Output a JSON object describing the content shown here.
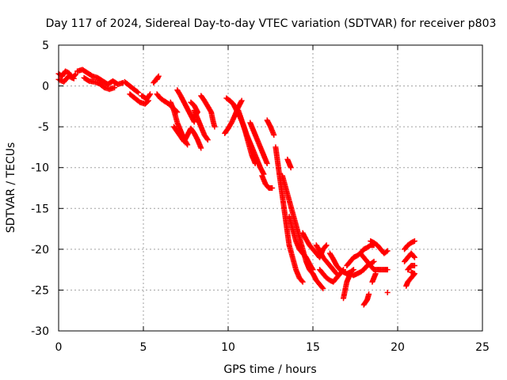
{
  "chart_data": {
    "type": "scatter",
    "title": "Day 117 of 2024, Sidereal Day-to-day VTEC variation (SDTVAR) for receiver p803",
    "xlabel": "GPS time / hours",
    "ylabel": "SDTVAR / TECUs",
    "xlim": [
      0,
      25
    ],
    "ylim": [
      -30,
      5
    ],
    "xticks": [
      0,
      5,
      10,
      15,
      20,
      25
    ],
    "yticks": [
      5,
      0,
      -5,
      -10,
      -15,
      -20,
      -25,
      -30
    ],
    "grid": true,
    "marker": "+",
    "color": "#ff0000",
    "series": [
      {
        "name": "SDTVAR",
        "segments": [
          [
            [
              0.0,
              1.5
            ],
            [
              0.2,
              1.2
            ],
            [
              0.4,
              1.8
            ],
            [
              0.6,
              1.6
            ],
            [
              0.8,
              1.0
            ],
            [
              1.0,
              1.4
            ]
          ],
          [
            [
              0.0,
              0.8
            ],
            [
              0.3,
              0.5
            ],
            [
              0.6,
              1.2
            ],
            [
              0.9,
              0.9
            ]
          ],
          [
            [
              1.1,
              1.8
            ],
            [
              1.4,
              2.0
            ],
            [
              1.7,
              1.6
            ],
            [
              2.0,
              1.2
            ],
            [
              2.3,
              1.0
            ],
            [
              2.6,
              0.6
            ],
            [
              2.9,
              0.2
            ],
            [
              3.2,
              0.6
            ],
            [
              3.5,
              0.2
            ],
            [
              3.8,
              0.4
            ]
          ],
          [
            [
              1.5,
              1.0
            ],
            [
              1.8,
              0.6
            ],
            [
              2.1,
              0.5
            ],
            [
              2.4,
              0.3
            ],
            [
              2.7,
              -0.2
            ],
            [
              3.0,
              -0.4
            ],
            [
              3.3,
              -0.2
            ]
          ],
          [
            [
              3.9,
              0.5
            ],
            [
              4.2,
              0.0
            ],
            [
              4.5,
              -0.5
            ],
            [
              4.7,
              -0.8
            ]
          ],
          [
            [
              4.2,
              -1.0
            ],
            [
              4.5,
              -1.5
            ],
            [
              4.8,
              -2.0
            ],
            [
              5.1,
              -2.2
            ],
            [
              5.3,
              -1.8
            ]
          ],
          [
            [
              4.9,
              -1.2
            ],
            [
              5.2,
              -1.6
            ],
            [
              5.4,
              -1.0
            ]
          ],
          [
            [
              5.8,
              0.8
            ],
            [
              5.9,
              1.2
            ],
            [
              5.6,
              0.4
            ]
          ],
          [
            [
              5.8,
              -1.0
            ],
            [
              6.0,
              -1.5
            ],
            [
              6.2,
              -1.8
            ],
            [
              6.5,
              -2.2
            ],
            [
              6.8,
              -2.8
            ],
            [
              7.0,
              -3.2
            ]
          ],
          [
            [
              6.6,
              -2.0
            ],
            [
              6.8,
              -3.0
            ],
            [
              7.0,
              -4.5
            ],
            [
              7.2,
              -5.5
            ],
            [
              7.4,
              -6.5
            ],
            [
              7.6,
              -7.2
            ]
          ],
          [
            [
              7.0,
              -0.5
            ],
            [
              7.2,
              -1.2
            ],
            [
              7.4,
              -2.0
            ],
            [
              7.6,
              -2.8
            ],
            [
              7.8,
              -3.6
            ],
            [
              8.0,
              -4.4
            ]
          ],
          [
            [
              6.8,
              -5.0
            ],
            [
              7.0,
              -5.6
            ],
            [
              7.2,
              -6.2
            ],
            [
              7.4,
              -6.8
            ],
            [
              7.6,
              -6.0
            ],
            [
              7.8,
              -5.2
            ],
            [
              8.0,
              -5.8
            ],
            [
              8.2,
              -6.6
            ],
            [
              8.4,
              -7.6
            ]
          ],
          [
            [
              8.0,
              -3.0
            ],
            [
              8.2,
              -4.0
            ],
            [
              8.4,
              -5.0
            ],
            [
              8.6,
              -6.0
            ],
            [
              8.8,
              -6.6
            ]
          ],
          [
            [
              8.4,
              -1.2
            ],
            [
              8.6,
              -1.8
            ],
            [
              8.8,
              -2.5
            ],
            [
              9.0,
              -3.2
            ],
            [
              9.1,
              -4.2
            ],
            [
              9.2,
              -5.0
            ]
          ],
          [
            [
              7.8,
              -2.0
            ],
            [
              8.0,
              -2.4
            ],
            [
              8.2,
              -3.2
            ],
            [
              8.0,
              -3.8
            ]
          ],
          [
            [
              9.9,
              -1.5
            ],
            [
              10.1,
              -1.8
            ],
            [
              10.3,
              -2.2
            ],
            [
              10.5,
              -3.0
            ],
            [
              10.7,
              -3.8
            ],
            [
              10.9,
              -4.8
            ],
            [
              11.1,
              -6.0
            ],
            [
              11.3,
              -7.0
            ],
            [
              11.5,
              -8.0
            ],
            [
              11.7,
              -9.0
            ],
            [
              11.9,
              -10.0
            ],
            [
              12.1,
              -10.8
            ]
          ],
          [
            [
              9.8,
              -5.8
            ],
            [
              10.0,
              -5.2
            ],
            [
              10.2,
              -4.5
            ],
            [
              10.4,
              -3.6
            ],
            [
              10.6,
              -2.6
            ],
            [
              10.8,
              -1.8
            ]
          ],
          [
            [
              10.6,
              -3.0
            ],
            [
              10.8,
              -4.2
            ],
            [
              11.0,
              -5.5
            ],
            [
              11.2,
              -7.0
            ],
            [
              11.4,
              -8.5
            ],
            [
              11.6,
              -9.5
            ]
          ],
          [
            [
              11.3,
              -4.5
            ],
            [
              11.5,
              -5.5
            ],
            [
              11.7,
              -6.5
            ],
            [
              11.9,
              -7.5
            ],
            [
              12.1,
              -8.5
            ],
            [
              12.3,
              -9.5
            ]
          ],
          [
            [
              12.3,
              -4.2
            ],
            [
              12.5,
              -5.0
            ],
            [
              12.7,
              -6.0
            ]
          ],
          [
            [
              12.0,
              -11.0
            ],
            [
              12.2,
              -12.0
            ],
            [
              12.4,
              -12.5
            ],
            [
              12.6,
              -12.5
            ]
          ],
          [
            [
              12.8,
              -7.5
            ],
            [
              12.9,
              -9.0
            ],
            [
              13.0,
              -10.5
            ],
            [
              13.1,
              -12.0
            ],
            [
              13.2,
              -13.5
            ],
            [
              13.3,
              -15.0
            ],
            [
              13.4,
              -16.5
            ],
            [
              13.5,
              -18.0
            ],
            [
              13.6,
              -19.5
            ],
            [
              13.8,
              -21.0
            ],
            [
              14.0,
              -22.5
            ],
            [
              14.2,
              -23.5
            ],
            [
              14.4,
              -24.0
            ]
          ],
          [
            [
              13.2,
              -11.0
            ],
            [
              13.4,
              -12.5
            ],
            [
              13.6,
              -14.0
            ],
            [
              13.8,
              -15.5
            ],
            [
              14.0,
              -17.0
            ],
            [
              14.2,
              -18.5
            ],
            [
              14.4,
              -20.0
            ],
            [
              14.6,
              -21.5
            ],
            [
              14.8,
              -22.5
            ],
            [
              15.0,
              -23.0
            ],
            [
              15.2,
              -23.8
            ],
            [
              15.4,
              -24.3
            ],
            [
              15.6,
              -24.8
            ]
          ],
          [
            [
              13.6,
              -16.0
            ],
            [
              13.8,
              -17.5
            ],
            [
              14.0,
              -19.0
            ],
            [
              14.2,
              -20.0
            ],
            [
              14.4,
              -20.5
            ],
            [
              14.6,
              -21.0
            ],
            [
              14.8,
              -21.8
            ],
            [
              15.0,
              -22.5
            ]
          ],
          [
            [
              14.4,
              -18.0
            ],
            [
              14.6,
              -18.8
            ],
            [
              14.8,
              -19.5
            ],
            [
              15.0,
              -20.0
            ],
            [
              15.2,
              -20.5
            ],
            [
              15.4,
              -21.0
            ],
            [
              15.6,
              -20.0
            ],
            [
              15.8,
              -19.5
            ]
          ],
          [
            [
              13.5,
              -9.0
            ],
            [
              13.6,
              -9.5
            ],
            [
              13.7,
              -10.0
            ]
          ],
          [
            [
              15.2,
              -19.5
            ],
            [
              15.4,
              -20.2
            ],
            [
              15.6,
              -21.0
            ],
            [
              15.8,
              -21.5
            ],
            [
              16.0,
              -22.0
            ],
            [
              16.2,
              -22.5
            ],
            [
              16.4,
              -23.0
            ]
          ],
          [
            [
              15.4,
              -22.5
            ],
            [
              15.6,
              -23.0
            ],
            [
              15.8,
              -23.5
            ],
            [
              16.0,
              -23.8
            ],
            [
              16.2,
              -24.0
            ],
            [
              16.4,
              -23.5
            ],
            [
              16.6,
              -23.0
            ],
            [
              16.8,
              -22.5
            ]
          ],
          [
            [
              16.0,
              -20.5
            ],
            [
              16.2,
              -21.2
            ],
            [
              16.4,
              -22.0
            ],
            [
              16.6,
              -22.5
            ],
            [
              16.8,
              -22.8
            ],
            [
              17.0,
              -23.0
            ],
            [
              17.2,
              -22.8
            ],
            [
              17.4,
              -22.5
            ]
          ],
          [
            [
              16.8,
              -26.0
            ],
            [
              16.9,
              -25.0
            ],
            [
              17.0,
              -24.0
            ],
            [
              17.1,
              -23.5
            ],
            [
              17.2,
              -23.0
            ]
          ],
          [
            [
              17.0,
              -22.0
            ],
            [
              17.2,
              -21.5
            ],
            [
              17.4,
              -21.0
            ],
            [
              17.6,
              -20.8
            ],
            [
              17.8,
              -20.5
            ],
            [
              18.0,
              -20.0
            ],
            [
              18.2,
              -19.8
            ],
            [
              18.4,
              -19.5
            ],
            [
              18.6,
              -19.5
            ]
          ],
          [
            [
              17.2,
              -23.0
            ],
            [
              17.4,
              -23.2
            ],
            [
              17.6,
              -23.0
            ],
            [
              17.8,
              -22.8
            ],
            [
              18.0,
              -22.5
            ],
            [
              18.2,
              -22.0
            ],
            [
              18.4,
              -21.8
            ],
            [
              18.6,
              -21.5
            ]
          ],
          [
            [
              17.8,
              -20.5
            ],
            [
              18.0,
              -21.0
            ],
            [
              18.2,
              -21.5
            ],
            [
              18.4,
              -22.0
            ],
            [
              18.6,
              -22.5
            ],
            [
              18.8,
              -22.5
            ],
            [
              19.0,
              -22.5
            ],
            [
              19.2,
              -22.5
            ],
            [
              19.4,
              -22.5
            ]
          ],
          [
            [
              18.4,
              -19.0
            ],
            [
              18.6,
              -19.2
            ],
            [
              18.8,
              -19.5
            ],
            [
              19.0,
              -20.0
            ],
            [
              19.2,
              -20.5
            ],
            [
              19.4,
              -20.2
            ]
          ],
          [
            [
              18.5,
              -24.0
            ],
            [
              18.6,
              -23.5
            ],
            [
              18.7,
              -23.0
            ]
          ],
          [
            [
              18.0,
              -26.8
            ],
            [
              18.2,
              -26.2
            ],
            [
              18.3,
              -25.5
            ]
          ],
          [
            [
              19.4,
              -25.3
            ]
          ],
          [
            [
              20.4,
              -20.0
            ],
            [
              20.6,
              -19.5
            ],
            [
              20.8,
              -19.2
            ],
            [
              21.0,
              -19.0
            ]
          ],
          [
            [
              20.4,
              -21.5
            ],
            [
              20.6,
              -21.0
            ],
            [
              20.8,
              -20.5
            ],
            [
              21.0,
              -21.0
            ]
          ],
          [
            [
              20.6,
              -22.5
            ],
            [
              20.8,
              -22.0
            ],
            [
              21.0,
              -22.0
            ]
          ],
          [
            [
              20.5,
              -24.5
            ],
            [
              20.6,
              -24.0
            ],
            [
              20.8,
              -23.5
            ],
            [
              21.0,
              -23.0
            ],
            [
              20.8,
              -22.8
            ]
          ]
        ]
      }
    ]
  }
}
